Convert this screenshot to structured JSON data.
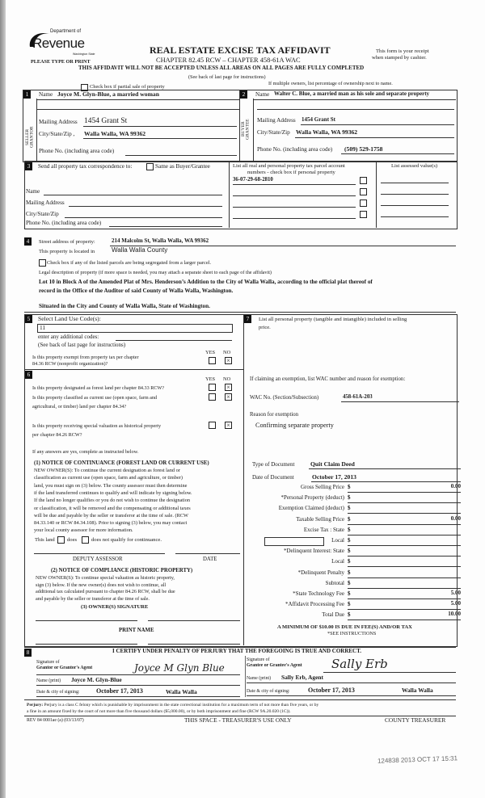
{
  "header": {
    "logo_dept": "Department of",
    "logo_name": "Revenue",
    "logo_state": "Washington State",
    "please_type": "PLEASE TYPE OR PRINT",
    "title": "REAL ESTATE EXCISE TAX AFFIDAVIT",
    "chapter": "CHAPTER 82.45 RCW – CHAPTER 458-61A WAC",
    "warning": "THIS AFFIDAVIT WILL NOT BE ACCEPTED UNLESS ALL AREAS ON ALL PAGES ARE FULLY COMPLETED",
    "see_back": "(See back of last page for instructions)",
    "receipt_1": "This form is your receipt",
    "receipt_2": "when stamped by cashier.",
    "partial_sale": "Check box if partial sale of property",
    "multiple_owners": "If multiple owners, list percentage of ownership next to name."
  },
  "seller": {
    "num": "1",
    "side_label": "SELLER GRANTOR",
    "name_label": "Name",
    "name": "Joyce M. Glyn-Blue, a married woman",
    "mailing_label": "Mailing Address",
    "mailing": "1454 Grant St",
    "city_label": "City/State/Zip ,",
    "city": "Walla Walla, WA  99362",
    "phone_label": "Phone No. (including area code)",
    "phone": ""
  },
  "buyer": {
    "num": "2",
    "side_label": "BUYER GRANTEE",
    "name_label": "Name",
    "name": "Walter C. Blue, a married man as his sole and separate property",
    "mailing_label": "Mailing Address",
    "mailing": "1454 Grant St",
    "city_label": "City/State/Zip",
    "city": "Walla Walla, WA  99362",
    "phone_label": "Phone No. (including area code)",
    "phone": "(509) 529-1758"
  },
  "section3": {
    "num": "3",
    "send_label": "Send all property tax correspondence to:",
    "same_as": "Same as Buyer/Grantee",
    "name_label": "Name",
    "mailing_label": "Mailing Address",
    "city_label": "City/State/Zip",
    "phone_label": "Phone No. (including area code)",
    "parcel_header_1": "List all real and personal property tax parcel account",
    "parcel_header_2": "numbers - check box if personal property",
    "assessed_header": "List assessed value(s)",
    "parcels": [
      "36-07-29-68-2810",
      "",
      "",
      ""
    ]
  },
  "section4": {
    "num": "4",
    "street_label": "Street address of property:",
    "street": "214 Malcolm St, Walla Walla, WA  99362",
    "located_label": "This property is located in",
    "county": "Walla Walla County",
    "segregated": "Check box if any of the listed parcels are being segregated from a larger parcel.",
    "legal_label": "Legal description of property (if more space is needed, you may attach a separate sheet to each page of the affidavit)",
    "legal_1": "Lot 10 in Block A of the Amended Plat of Mrs. Henderson’s Addition to the City of Walla Walla, according to the official plat thereof of",
    "legal_2": "record in the Office of the Auditor of said County of Walla Walla, Washington.",
    "legal_3": "Situated in the City and County of Walla Walla, State of Washington."
  },
  "section5": {
    "num": "5",
    "land_use_label": "Select Land Use Code(s):",
    "land_use_code": "11",
    "additional": "enter any additional codes:",
    "see_back": "(See back of last page for instructions)",
    "yes": "YES",
    "no": "NO",
    "exempt_q1": "Is this property exempt from property tax per chapter",
    "exempt_q2": "84.36 RCW (nonprofit organization)?"
  },
  "section6": {
    "num": "6",
    "yes": "YES",
    "no": "NO",
    "q1": "Is this property designated as forest land per chapter 84.33 RCW?",
    "q2a": "Is this property classified as current use (open space, farm and",
    "q2b": "agricultural, or timber) land per chapter 84.34?",
    "q3a": "Is this property receiving special valuation as historical property",
    "q3b": "per chapter 84.26 RCW?",
    "if_yes": "If any answers are yes, complete as instructed below.",
    "notice1_title": "(1) NOTICE OF CONTINUANCE (FOREST LAND OR CURRENT USE)",
    "notice1_lines": [
      "NEW OWNER(S): To continue the current designation as forest land or",
      "classification as current use (open space, farm and agriculture, or timber)",
      "land, you must sign on (3) below. The county assessor must then determine",
      "if the land transferred continues to qualify and will indicate by signing below.",
      "If the land no longer qualifies or you do not wish to continue the designation",
      "or classification, it will be removed and the compensating or additional taxes",
      "will be due and payable by the seller or transferor at the time of sale. (RCW",
      "84.33.140 or RCW 84.34.108). Prior to signing (3) below, you may contact",
      "your local county assessor for more information."
    ],
    "this_land": "This land",
    "does": "does",
    "does_not": "does not  qualify for continuance.",
    "deputy": "DEPUTY ASSESSOR",
    "date": "DATE",
    "notice2_title": "(2) NOTICE OF COMPLIANCE (HISTORIC PROPERTY)",
    "notice2_lines": [
      "NEW OWNER(S): To continue special valuation as historic property,",
      "sign (3) below. If the new owner(s) does not wish to continue, all",
      "additional tax calculated pursuant to chapter 84.26 RCW, shall be due",
      "and payable by the seller or transferor at the time of sale."
    ],
    "owner_sig": "(3) OWNER(S) SIGNATURE",
    "print_name": "PRINT NAME"
  },
  "section7": {
    "num": "7",
    "personal_1": "List all personal property (tangible and intangible) included in selling",
    "personal_2": "price.",
    "exemption_label": "If claiming an exemption, list WAC number and reason for exemption:",
    "wac_label": "WAC No. (Section/Subsection)",
    "wac": "458-61A-203",
    "reason_label": "Reason for exemption",
    "reason": "Confirming separate property",
    "doc_type_label": "Type of Document",
    "doc_type": "Quit Claim Deed",
    "doc_date_label": "Date of Document",
    "doc_date": "October 17, 2013",
    "fees": [
      {
        "label": "Gross Selling Price",
        "value": "0.00"
      },
      {
        "label": "*Personal Property (deduct)",
        "value": ""
      },
      {
        "label": "Exemption Claimed (deduct)",
        "value": ""
      },
      {
        "label": "Taxable Selling Price",
        "value": "0.00"
      },
      {
        "label": "Excise Tax : State",
        "value": ""
      },
      {
        "label": "Local",
        "value": ""
      },
      {
        "label": "*Delinquent Interest:  State",
        "value": ""
      },
      {
        "label": "Local",
        "value": ""
      },
      {
        "label": "*Delinquent Penalty",
        "value": ""
      },
      {
        "label": "Subtotal",
        "value": ""
      },
      {
        "label": "*State Technology Fee",
        "value": "5.00"
      },
      {
        "label": "*Affidavit Processing Fee",
        "value": "5.00"
      },
      {
        "label": "Total Due",
        "value": "10.00"
      }
    ],
    "currency": "$",
    "minimum": "A MINIMUM OF $10.00 IS DUE IN FEE(S) AND/OR TAX",
    "see_instructions": "*SEE INSTRUCTIONS"
  },
  "section8": {
    "num": "8",
    "certify": "I CERTIFY UNDER PENALTY OF PERJURY THAT THE FOREGOING IS TRUE AND CORRECT.",
    "grantor_sig_1": "Signature of",
    "grantor_sig_2": "Grantor or Grantor's Agent",
    "grantor_signature": "Joyce M Glyn Blue",
    "grantor_name_label": "Name (print)",
    "grantor_name": "Joyce M. Glyn-Blue",
    "grantor_date_label": "Date & city of signing:",
    "grantor_date": "October 17, 2013",
    "grantor_city": "Walla Walla",
    "grantee_sig_1": "Signature of",
    "grantee_sig_2": "Grantee or Grantee's Agent",
    "grantee_signature": "Sally Erb",
    "grantee_name_label": "Name (print)",
    "grantee_name": "Sally Erb, Agent",
    "grantee_date_label": "Date & city of signing:",
    "grantee_date": "October 17, 2013",
    "grantee_city": "Walla Walla"
  },
  "footer": {
    "perjury_label": "Perjury:",
    "perjury_1": "Perjury is a class C felony which is punishable by imprisonment in the state correctional institution for a maximum term of not more than five years, or by",
    "perjury_2": "a fine in an amount fixed by the court of not more than five thousand dollars ($5,000.00), or by both imprisonment and fine (RCW 9A.20.020 (1C)).",
    "rev": "REV 84 0001ae (a) (03/13/07)",
    "treasurer_use": "THIS SPACE - TREASURER'S USE ONLY",
    "county_treasurer": "COUNTY TREASURER",
    "stamp": "124838 2013 OCT 17 15:31"
  }
}
